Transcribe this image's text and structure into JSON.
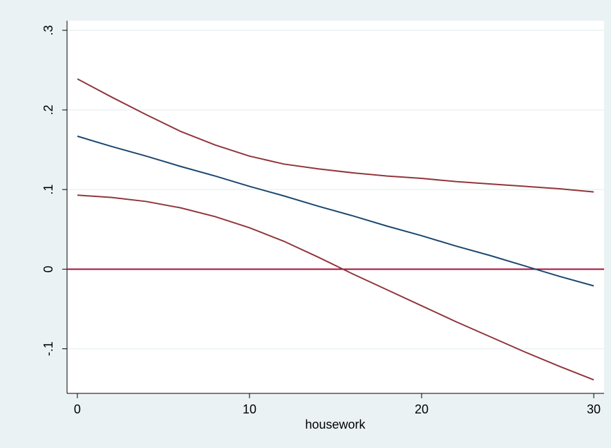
{
  "chart_data": {
    "type": "line",
    "x": [
      0,
      2,
      4,
      6,
      8,
      10,
      12,
      14,
      16,
      18,
      20,
      22,
      24,
      26,
      28,
      30
    ],
    "series": [
      {
        "color": "#90353b",
        "values": [
          0.239,
          0.216,
          0.194,
          0.173,
          0.156,
          0.142,
          0.132,
          0.126,
          0.121,
          0.117,
          0.114,
          0.11,
          0.107,
          0.104,
          0.101,
          0.097
        ]
      },
      {
        "color": "#1a476f",
        "values": [
          0.167,
          0.154,
          0.142,
          0.129,
          0.117,
          0.104,
          0.092,
          0.079,
          0.067,
          0.054,
          0.042,
          0.029,
          0.017,
          0.004,
          -0.009,
          -0.021
        ]
      },
      {
        "color": "#90353b",
        "values": [
          0.093,
          0.09,
          0.085,
          0.077,
          0.066,
          0.052,
          0.035,
          0.015,
          -0.006,
          -0.026,
          -0.046,
          -0.066,
          -0.085,
          -0.104,
          -0.122,
          -0.139
        ]
      }
    ],
    "xlabel": "housework",
    "xlim": [
      -0.6,
      30.6
    ],
    "ylim": [
      -0.156,
      0.312
    ],
    "xticks": [
      0,
      10,
      20,
      30
    ],
    "yticks": [
      {
        "value": -0.1,
        "label": "-.1"
      },
      0,
      {
        "value": 0.1,
        "label": ".1"
      },
      {
        "value": 0.2,
        "label": ".2"
      },
      {
        "value": 0.3,
        "label": ".3"
      }
    ],
    "grid": true,
    "yline": 0,
    "yline_color": "#a0103a"
  }
}
